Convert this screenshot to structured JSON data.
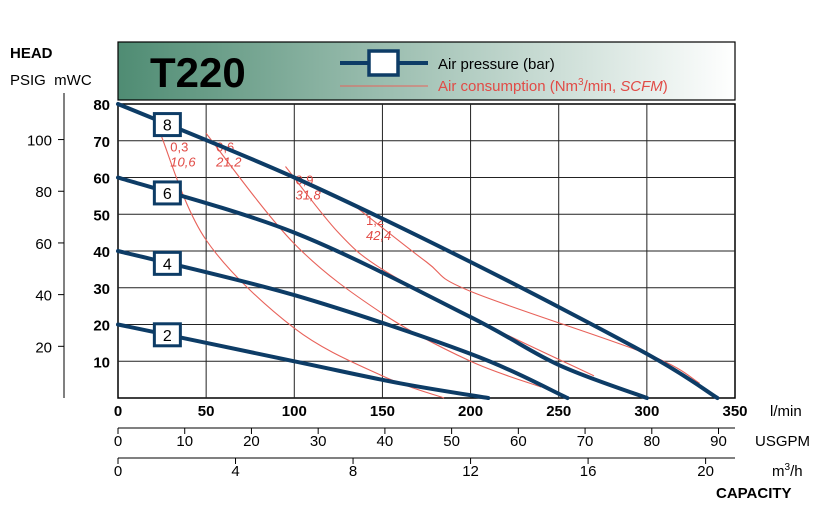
{
  "chart_data": {
    "type": "line",
    "title": "T220",
    "legend": {
      "placement": "top-right",
      "pressure_label": "Air pressure (bar)",
      "consumption_prefix": "Air consumption (Nm",
      "consumption_sup": "3",
      "consumption_mid": "/min, ",
      "consumption_italic": "SCFM",
      "consumption_suffix": ")"
    },
    "head_label": "HEAD",
    "head_units": "PSIG  mWC",
    "capacity_label": "CAPACITY",
    "units": {
      "lmin": "l/min",
      "usgpm": "USGPM",
      "m3h_base": "m",
      "m3h_sup": "3",
      "m3h_rest": "/h"
    },
    "xlim_lmin": [
      0,
      350
    ],
    "ylim_mwc": [
      0,
      80
    ],
    "grid": true,
    "x_ticks_lmin": [
      "0",
      "50",
      "100",
      "150",
      "200",
      "250",
      "300",
      "350"
    ],
    "y_ticks_mwc": [
      "10",
      "20",
      "30",
      "40",
      "50",
      "60",
      "70",
      "80"
    ],
    "x_ticks_usgpm": [
      "0",
      "10",
      "20",
      "30",
      "40",
      "50",
      "60",
      "70",
      "80",
      "90"
    ],
    "x_ticks_m3h": [
      "0",
      "4",
      "8",
      "12",
      "16",
      "20"
    ],
    "y_ticks_psig": [
      "20",
      "40",
      "60",
      "80",
      "100"
    ],
    "colors": {
      "pressure": "#0d3c66",
      "consumption": "#e8625a",
      "header_dark": "#4f8c73"
    },
    "pressure_series": [
      {
        "label": "8",
        "points": [
          [
            0,
            80
          ],
          [
            100,
            60
          ],
          [
            200,
            37
          ],
          [
            300,
            12
          ],
          [
            340,
            0
          ]
        ]
      },
      {
        "label": "6",
        "points": [
          [
            0,
            60
          ],
          [
            100,
            45
          ],
          [
            200,
            22
          ],
          [
            250,
            9
          ],
          [
            300,
            0
          ]
        ]
      },
      {
        "label": "4",
        "points": [
          [
            0,
            40
          ],
          [
            100,
            28
          ],
          [
            200,
            12
          ],
          [
            255,
            0
          ]
        ]
      },
      {
        "label": "2",
        "points": [
          [
            0,
            20
          ],
          [
            100,
            10
          ],
          [
            160,
            4
          ],
          [
            210,
            0
          ]
        ]
      }
    ],
    "consumption_series": [
      {
        "label_top": "0,3",
        "label_bottom": "10,6",
        "points": [
          [
            24,
            72
          ],
          [
            50,
            43
          ],
          [
            100,
            19
          ],
          [
            150,
            6
          ],
          [
            185,
            0
          ]
        ]
      },
      {
        "label_top": "0,6",
        "label_bottom": "21,2",
        "points": [
          [
            50,
            72
          ],
          [
            100,
            42
          ],
          [
            150,
            23
          ],
          [
            200,
            10
          ],
          [
            240,
            3
          ]
        ]
      },
      {
        "label_top": "0,9",
        "label_bottom": "31,8",
        "points": [
          [
            95,
            63
          ],
          [
            125,
            45
          ],
          [
            150,
            35
          ],
          [
            200,
            22
          ],
          [
            270,
            6
          ]
        ]
      },
      {
        "label_top": "1,2",
        "label_bottom": "42,4",
        "points": [
          [
            135,
            52
          ],
          [
            175,
            37
          ],
          [
            200,
            29
          ],
          [
            300,
            12
          ],
          [
            330,
            4
          ]
        ]
      }
    ]
  }
}
